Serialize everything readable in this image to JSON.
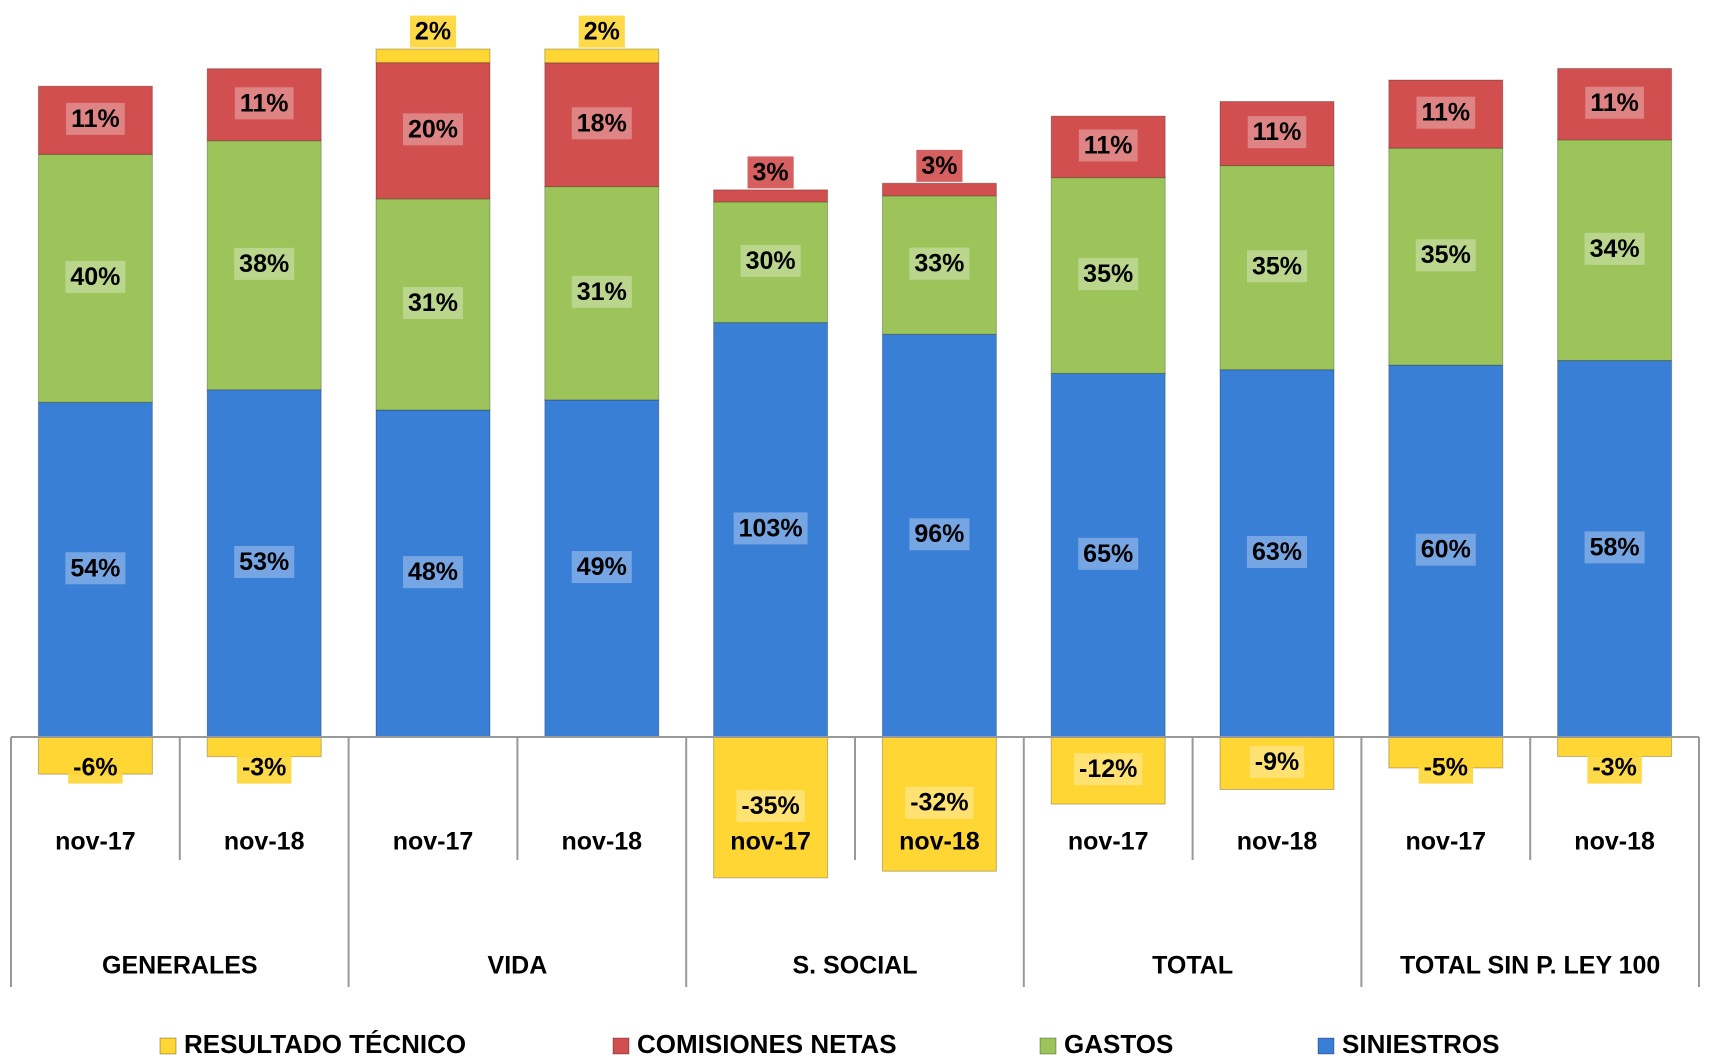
{
  "chart_data": {
    "type": "bar",
    "stacked": true,
    "categories": [
      "nov-17",
      "nov-18",
      "nov-17",
      "nov-18",
      "nov-17",
      "nov-18",
      "nov-17",
      "nov-18",
      "nov-17",
      "nov-18"
    ],
    "groups": [
      "GENERALES",
      "VIDA",
      "S. SOCIAL",
      "TOTAL",
      "TOTAL SIN P. LEY 100"
    ],
    "series": [
      {
        "name": "RESULTADO TÉCNICO",
        "color": "#ffd634",
        "values": [
          -6,
          -3,
          2,
          2,
          -35,
          -32,
          -12,
          -9,
          -5,
          -3
        ],
        "value_labels": [
          "-6%",
          "-3%",
          "2%",
          "2%",
          "-35%",
          "-32%",
          "-12%",
          "-9%",
          "-5%",
          "-3%"
        ]
      },
      {
        "name": "COMISIONES NETAS",
        "color": "#d24f4f",
        "values": [
          11,
          11,
          20,
          18,
          3,
          3,
          11,
          11,
          11,
          11
        ],
        "value_labels": [
          "11%",
          "11%",
          "20%",
          "18%",
          "3%",
          "3%",
          "11%",
          "11%",
          "11%",
          "11%"
        ]
      },
      {
        "name": "GASTOS",
        "color": "#9cc45b",
        "values": [
          40,
          38,
          31,
          31,
          30,
          33,
          35,
          35,
          35,
          34
        ],
        "value_labels": [
          "40%",
          "38%",
          "31%",
          "31%",
          "30%",
          "33%",
          "35%",
          "35%",
          "35%",
          "34%"
        ]
      },
      {
        "name": "SINIESTROS",
        "color": "#3a7fd6",
        "values": [
          54,
          53,
          48,
          49,
          103,
          96,
          65,
          63,
          60,
          58
        ],
        "value_labels": [
          "54%",
          "53%",
          "48%",
          "49%",
          "103%",
          "96%",
          "65%",
          "63%",
          "60%",
          "58%"
        ]
      }
    ]
  }
}
